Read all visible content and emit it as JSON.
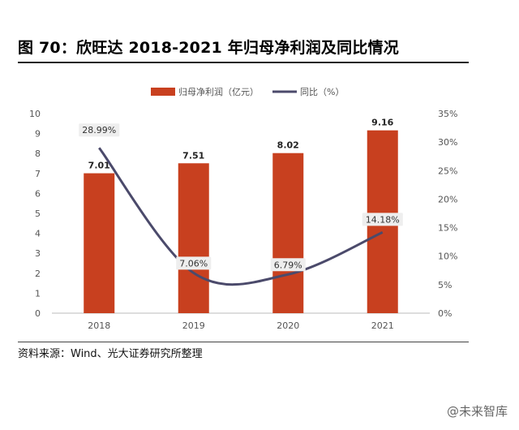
{
  "header": {
    "title": "图 70：欣旺达 2018-2021 年归母净利润及同比情况"
  },
  "footer": {
    "source": "资料来源：Wind、光大证券研究所整理",
    "watermark": "@未来智库"
  },
  "colors": {
    "bar": "#c8401f",
    "line": "#4b4a6b",
    "axis": "#888888",
    "text": "#555555"
  },
  "chart_data": {
    "type": "bar",
    "categories": [
      "2018",
      "2019",
      "2020",
      "2021"
    ],
    "series": [
      {
        "name": "归母净利润（亿元）",
        "type": "bar",
        "axis": "left",
        "values": [
          7.01,
          7.51,
          8.02,
          9.16
        ],
        "labels": [
          "7.01",
          "7.51",
          "8.02",
          "9.16"
        ]
      },
      {
        "name": "同比（%）",
        "type": "line",
        "axis": "right",
        "values": [
          28.99,
          7.06,
          6.79,
          14.18
        ],
        "labels": [
          "28.99%",
          "7.06%",
          "6.79%",
          "14.18%"
        ]
      }
    ],
    "left_axis": {
      "min": 0,
      "max": 10,
      "ticks": [
        "0",
        "1",
        "2",
        "3",
        "4",
        "5",
        "6",
        "7",
        "8",
        "9",
        "10"
      ]
    },
    "right_axis": {
      "min": 0,
      "max": 35,
      "ticks": [
        "0%",
        "5%",
        "10%",
        "15%",
        "20%",
        "25%",
        "30%",
        "35%"
      ]
    },
    "line_style": "smooth",
    "legend": "top-center",
    "grid": false
  }
}
